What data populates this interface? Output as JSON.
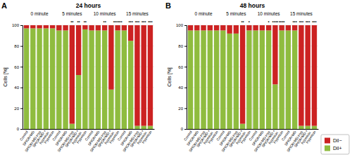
{
  "chart_data": [
    {
      "type": "bar",
      "title": "24 hours",
      "ylabel": "Cells [%]",
      "stacked": true,
      "grid": true,
      "categories": [
        "Control",
        "SPIONᶜMD",
        "SPIONᶜMD-Hyp",
        "SPIONᶜMD +\nhypericin",
        "Hypericin",
        "Control",
        "SPIONᶜMD",
        "SPIONᶜMD-Hyp",
        "SPIONᶜMD +\nhypericin",
        "Hypericin",
        "Control",
        "SPIONᶜMD",
        "SPIONᶜMD-Hyp",
        "SPIONᶜMD +\nhypericin",
        "Hypericin",
        "Control",
        "SPIONᶜMD",
        "SPIONᶜMD-Hyp",
        "SPIONᶜMD +\nhypericin",
        "Hypericin"
      ],
      "series": [
        {
          "name": "DiI+",
          "color": "#8fbc3f",
          "values": [
            97,
            97,
            97,
            97,
            97,
            95,
            95,
            5,
            52,
            96,
            95,
            95,
            95,
            38,
            95,
            95,
            85,
            3,
            3,
            3
          ]
        },
        {
          "name": "DiI−",
          "color": "#cc2222",
          "values": [
            3,
            3,
            3,
            3,
            3,
            5,
            5,
            95,
            48,
            4,
            5,
            5,
            5,
            62,
            5,
            5,
            15,
            97,
            97,
            97
          ]
        }
      ],
      "ylim": [
        0,
        100
      ],
      "yticks": [
        0,
        20,
        40,
        60,
        80,
        100
      ],
      "annotations": [
        {
          "text": "A",
          "position": "top left"
        },
        {
          "text": "0 minute",
          "categories": [
            0,
            1,
            2,
            3,
            4
          ]
        },
        {
          "text": "5 minutes",
          "categories": [
            5,
            6,
            7,
            8,
            9
          ]
        },
        {
          "text": "10 minutes",
          "categories": [
            10,
            11,
            12,
            13,
            14
          ]
        },
        {
          "text": "15 minutes",
          "categories": [
            15,
            16,
            17,
            18,
            19
          ]
        },
        {
          "text": "**",
          "category": 7
        },
        {
          "text": "**",
          "category": 8
        },
        {
          "text": "**",
          "category": 9
        },
        {
          "text": "**",
          "category": 12
        },
        {
          "text": "******",
          "category": 14
        },
        {
          "text": "***",
          "category": 16
        },
        {
          "text": "***",
          "category": 17
        },
        {
          "text": "***",
          "category": 18
        },
        {
          "text": "***",
          "category": 19
        }
      ]
    },
    {
      "type": "bar",
      "title": "48 hours",
      "ylabel": "Cells [%]",
      "stacked": true,
      "grid": true,
      "legend": "lower right",
      "categories": [
        "Control",
        "SPIONᶜMD",
        "SPIONᶜMD-Hyp",
        "SPIONᶜMD +\nhypericin",
        "Hypericin",
        "Control",
        "SPIONᶜMD",
        "SPIONᶜMD-Hyp",
        "SPIONᶜMD +\nhypericin",
        "Hypericin",
        "Control",
        "SPIONᶜMD",
        "SPIONᶜMD-Hyp",
        "SPIONᶜMD +\nhypericin",
        "Hypericin",
        "Control",
        "SPIONᶜMD",
        "SPIONᶜMD-Hyp",
        "SPIONᶜMD +\nhypericin",
        "Hypericin"
      ],
      "series": [
        {
          "name": "DiI+",
          "color": "#8fbc3f",
          "values": [
            95,
            95,
            95,
            95,
            95,
            95,
            92,
            92,
            5,
            95,
            95,
            95,
            95,
            43,
            95,
            95,
            95,
            3,
            3,
            3
          ]
        },
        {
          "name": "DiI−",
          "color": "#cc2222",
          "values": [
            5,
            5,
            5,
            5,
            5,
            5,
            8,
            8,
            95,
            5,
            5,
            5,
            5,
            57,
            5,
            5,
            5,
            97,
            97,
            97
          ]
        }
      ],
      "ylim": [
        0,
        100
      ],
      "yticks": [
        0,
        20,
        40,
        60,
        80,
        100
      ],
      "annotations": [
        {
          "text": "B",
          "position": "top left"
        },
        {
          "text": "0 minute",
          "categories": [
            0,
            1,
            2,
            3,
            4
          ]
        },
        {
          "text": "5 minutes",
          "categories": [
            5,
            6,
            7,
            8,
            9
          ]
        },
        {
          "text": "10 minutes",
          "categories": [
            10,
            11,
            12,
            13,
            14
          ]
        },
        {
          "text": "15 minutes",
          "categories": [
            15,
            16,
            17,
            18,
            19
          ]
        },
        {
          "text": "**",
          "category": 8
        },
        {
          "text": "*",
          "category": 9
        },
        {
          "text": "*",
          "category": 12
        },
        {
          "text": "****",
          "category": 13
        },
        {
          "text": "****",
          "category": 14
        },
        {
          "text": "***",
          "category": 16
        },
        {
          "text": "***",
          "category": 17
        },
        {
          "text": "***",
          "category": 18
        },
        {
          "text": "***",
          "category": 19
        }
      ]
    }
  ]
}
